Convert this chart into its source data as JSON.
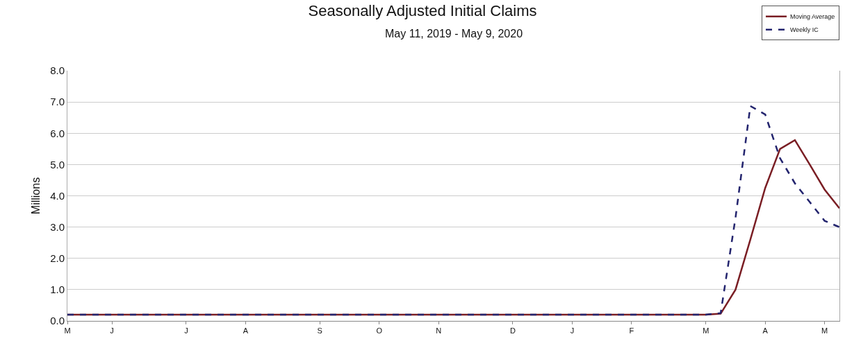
{
  "chart_data": {
    "type": "line",
    "title": "Seasonally Adjusted Initial Claims",
    "subtitle": "May 11, 2019 - May 9, 2020",
    "ylabel": "Millions",
    "categories": [
      "M",
      null,
      null,
      "J",
      null,
      null,
      null,
      null,
      "J",
      null,
      null,
      null,
      "A",
      null,
      null,
      null,
      null,
      "S",
      null,
      null,
      null,
      "O",
      null,
      null,
      null,
      "N",
      null,
      null,
      null,
      null,
      "D",
      null,
      null,
      null,
      "J",
      null,
      null,
      null,
      "F",
      null,
      null,
      null,
      null,
      "M",
      null,
      null,
      null,
      "A",
      null,
      null,
      null,
      "M",
      null
    ],
    "series": [
      {
        "name": "Moving Average",
        "color": "#7a1e24",
        "line_style": "solid",
        "values": [
          0.2,
          0.2,
          0.2,
          0.2,
          0.2,
          0.2,
          0.2,
          0.2,
          0.2,
          0.2,
          0.2,
          0.2,
          0.2,
          0.2,
          0.2,
          0.2,
          0.2,
          0.2,
          0.2,
          0.2,
          0.2,
          0.2,
          0.2,
          0.2,
          0.2,
          0.2,
          0.2,
          0.2,
          0.2,
          0.2,
          0.2,
          0.2,
          0.2,
          0.2,
          0.2,
          0.2,
          0.2,
          0.2,
          0.2,
          0.2,
          0.2,
          0.2,
          0.2,
          0.2,
          0.23,
          1.0,
          2.6,
          4.25,
          5.5,
          5.78,
          5.0,
          4.2,
          3.6
        ]
      },
      {
        "name": "Weekly IC",
        "color": "#23246e",
        "line_style": "dashed",
        "values": [
          0.2,
          0.2,
          0.2,
          0.2,
          0.2,
          0.2,
          0.2,
          0.2,
          0.2,
          0.2,
          0.2,
          0.2,
          0.2,
          0.2,
          0.2,
          0.2,
          0.2,
          0.2,
          0.2,
          0.2,
          0.2,
          0.2,
          0.2,
          0.2,
          0.2,
          0.2,
          0.2,
          0.2,
          0.2,
          0.2,
          0.2,
          0.2,
          0.2,
          0.2,
          0.2,
          0.2,
          0.2,
          0.2,
          0.2,
          0.2,
          0.2,
          0.2,
          0.2,
          0.2,
          0.25,
          3.3,
          6.87,
          6.6,
          5.2,
          4.4,
          3.8,
          3.2,
          3.0
        ]
      }
    ],
    "ylim": [
      0,
      8
    ],
    "yticks": [
      {
        "value": 0,
        "label": "0.0"
      },
      {
        "value": 1,
        "label": "1.0"
      },
      {
        "value": 2,
        "label": "2.0"
      },
      {
        "value": 3,
        "label": "3.0"
      },
      {
        "value": 4,
        "label": "4.0"
      },
      {
        "value": 5,
        "label": "5.0"
      },
      {
        "value": 6,
        "label": "6.0"
      },
      {
        "value": 7,
        "label": "7.0"
      },
      {
        "value": 8,
        "label": "8.0"
      }
    ],
    "grid": "y",
    "legend": "top right",
    "marker": "none"
  }
}
